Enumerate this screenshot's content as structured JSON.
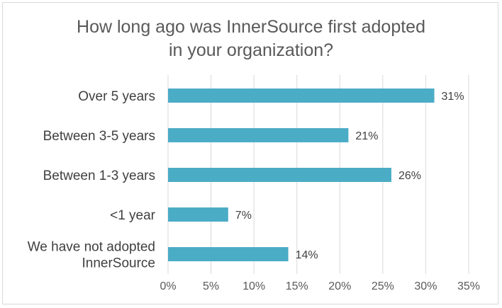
{
  "chart_data": {
    "type": "bar",
    "orientation": "horizontal",
    "title_lines": [
      "How long ago was InnerSource first adopted",
      "in your organization?"
    ],
    "categories": [
      [
        "Over 5 years"
      ],
      [
        "Between 3-5 years"
      ],
      [
        "Between 1-3 years"
      ],
      [
        "<1 year"
      ],
      [
        "We have not adopted",
        "InnerSource"
      ]
    ],
    "values": [
      31,
      21,
      26,
      7,
      14
    ],
    "data_labels": [
      "31%",
      "21%",
      "26%",
      "7%",
      "14%"
    ],
    "xlim": [
      0,
      35
    ],
    "xticks": [
      0,
      5,
      10,
      15,
      20,
      25,
      30,
      35
    ],
    "xtick_labels": [
      "0%",
      "5%",
      "10%",
      "15%",
      "20%",
      "25%",
      "30%",
      "35%"
    ],
    "grid": "vertical",
    "bar_color": "#4bacc6"
  }
}
